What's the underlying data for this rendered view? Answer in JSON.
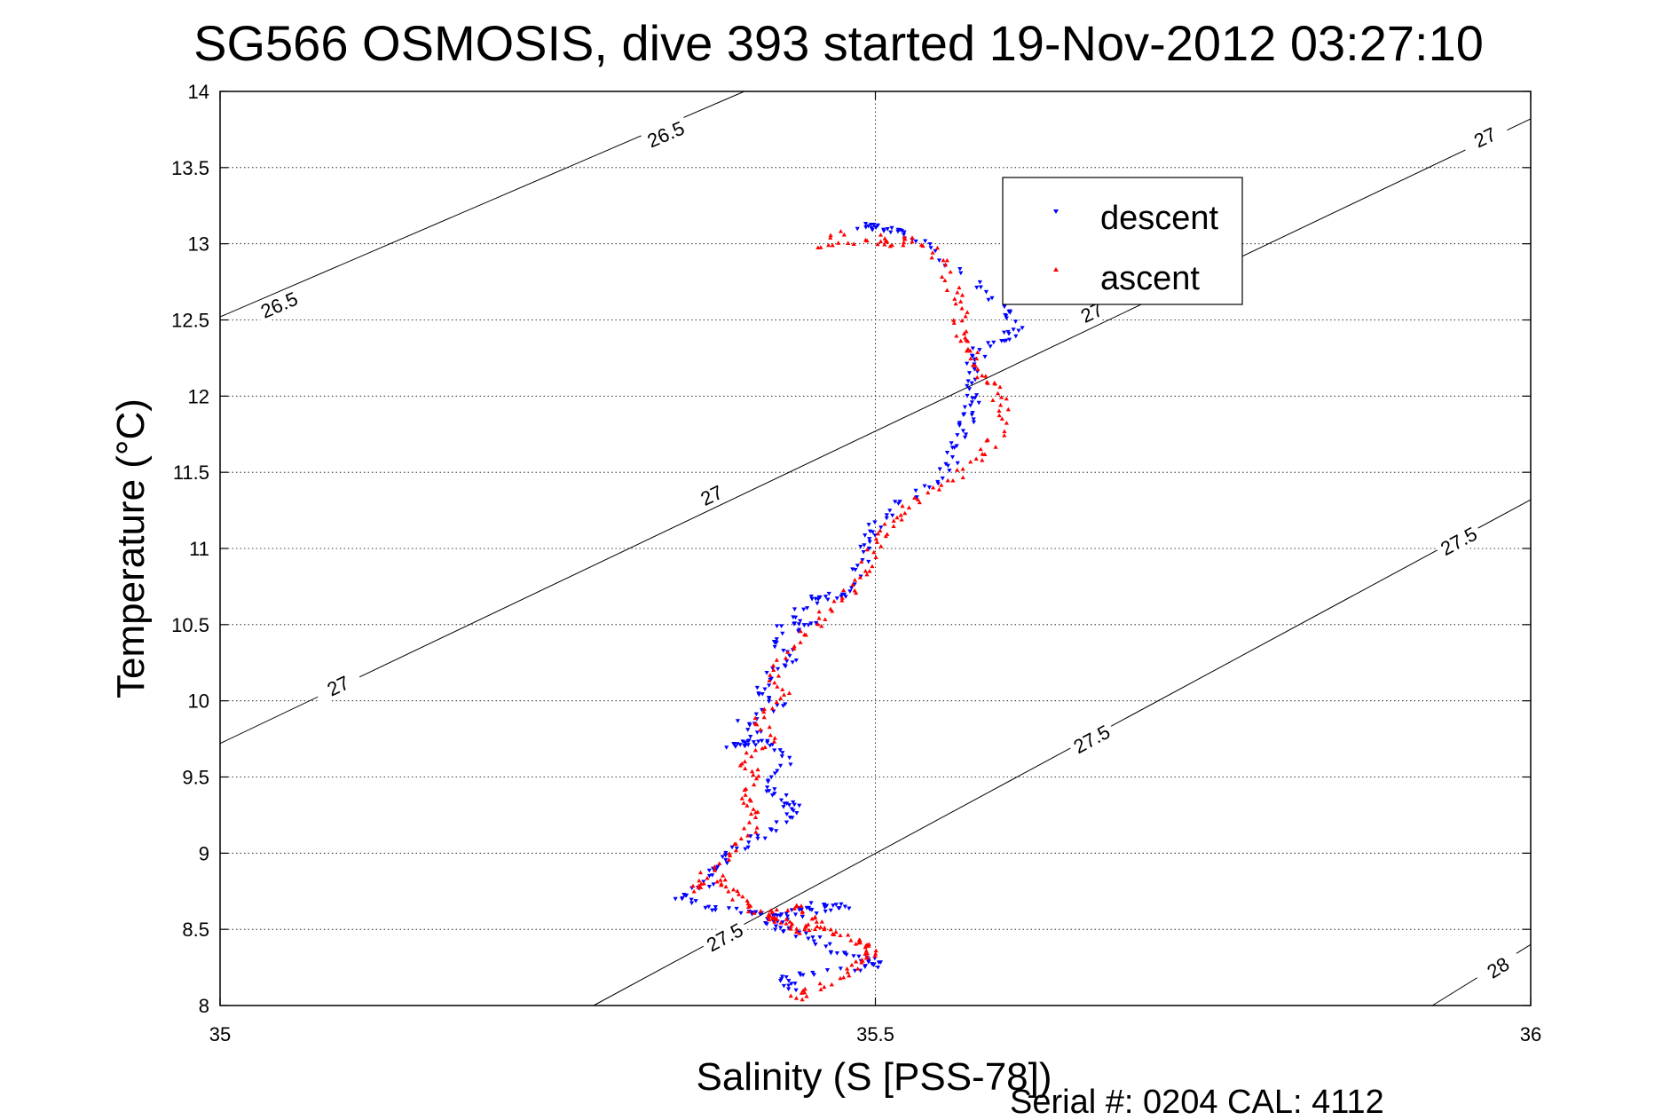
{
  "chart_data": {
    "type": "scatter",
    "title": "SG566 OSMOSIS, dive 393 started 19-Nov-2012 03:27:10",
    "xlabel": "Salinity (S [PSS-78])",
    "ylabel": "Temperature (°C)",
    "xlim": [
      35,
      36
    ],
    "ylim": [
      8,
      14
    ],
    "x_ticks": [
      {
        "value": 35,
        "label": "35"
      },
      {
        "value": 35.5,
        "label": "35.5"
      },
      {
        "value": 36,
        "label": "36"
      }
    ],
    "y_ticks": [
      {
        "value": 8,
        "label": "8"
      },
      {
        "value": 8.5,
        "label": "8.5"
      },
      {
        "value": 9,
        "label": "9"
      },
      {
        "value": 9.5,
        "label": "9.5"
      },
      {
        "value": 10,
        "label": "10"
      },
      {
        "value": 10.5,
        "label": "10.5"
      },
      {
        "value": 11,
        "label": "11"
      },
      {
        "value": 11.5,
        "label": "11.5"
      },
      {
        "value": 12,
        "label": "12"
      },
      {
        "value": 12.5,
        "label": "12.5"
      },
      {
        "value": 13,
        "label": "13"
      },
      {
        "value": 13.5,
        "label": "13.5"
      },
      {
        "value": 14,
        "label": "14"
      }
    ],
    "grid": true,
    "legend_position": "top-right",
    "density_contours": [
      {
        "label": "26.5",
        "points": [
          [
            35.0,
            12.52
          ],
          [
            35.4,
            14.0
          ]
        ],
        "labels_at": [
          [
            35.045,
            12.6
          ],
          [
            35.34,
            13.72
          ]
        ]
      },
      {
        "label": "27",
        "points": [
          [
            35.0,
            9.72
          ],
          [
            36.0,
            13.82
          ]
        ],
        "labels_at": [
          [
            35.09,
            10.1
          ],
          [
            35.375,
            11.35
          ],
          [
            35.665,
            12.55
          ],
          [
            35.965,
            13.7
          ]
        ]
      },
      {
        "label": "27.5",
        "points": [
          [
            35.285,
            8.0
          ],
          [
            36.0,
            11.32
          ]
        ],
        "labels_at": [
          [
            35.385,
            8.45
          ],
          [
            35.665,
            9.75
          ],
          [
            35.945,
            11.05
          ]
        ]
      },
      {
        "label": "28",
        "points": [
          [
            35.925,
            8.0
          ],
          [
            36.0,
            8.4
          ]
        ],
        "labels_at": [
          [
            35.975,
            8.25
          ]
        ]
      }
    ],
    "series": [
      {
        "name": "descent",
        "color": "#0000ff",
        "marker": "triangle-down",
        "x": [
          35.49,
          35.5,
          35.51,
          35.52,
          35.54,
          35.58,
          35.6,
          35.61,
          35.6,
          35.58,
          35.575,
          35.57,
          35.575,
          35.57,
          35.565,
          35.56,
          35.55,
          35.52,
          35.5,
          35.495,
          35.49,
          35.48,
          35.46,
          35.45,
          35.43,
          35.46,
          35.42,
          35.44,
          35.42,
          35.41,
          35.43,
          35.4,
          35.41,
          35.39,
          35.4,
          35.42,
          35.43,
          35.42,
          35.43,
          35.44,
          35.43,
          35.41,
          35.39,
          35.38,
          35.37,
          35.35,
          35.37,
          35.4,
          35.42,
          35.45,
          35.48,
          35.46,
          35.44,
          35.42,
          35.43,
          35.45,
          35.47,
          35.49,
          35.5,
          35.495,
          35.44,
          35.43,
          35.44
        ],
        "y": [
          13.1,
          13.12,
          13.1,
          13.08,
          12.97,
          12.72,
          12.55,
          12.45,
          12.38,
          12.3,
          12.2,
          12.05,
          11.95,
          11.85,
          11.75,
          11.6,
          11.45,
          11.3,
          11.15,
          11.05,
          10.9,
          10.7,
          10.68,
          10.65,
          10.5,
          10.52,
          10.4,
          10.3,
          10.2,
          10.05,
          9.98,
          9.85,
          9.75,
          9.7,
          9.72,
          9.72,
          9.6,
          9.45,
          9.35,
          9.3,
          9.2,
          9.1,
          9.0,
          8.9,
          8.8,
          8.7,
          8.65,
          8.62,
          8.6,
          8.62,
          8.64,
          8.68,
          8.6,
          8.55,
          8.5,
          8.45,
          8.35,
          8.3,
          8.28,
          8.25,
          8.2,
          8.15,
          8.1
        ]
      },
      {
        "name": "ascent",
        "color": "#ff0000",
        "marker": "triangle-up",
        "x": [
          35.44,
          35.45,
          35.48,
          35.49,
          35.5,
          35.49,
          35.48,
          35.46,
          35.43,
          35.42,
          35.44,
          35.46,
          35.44,
          35.42,
          35.4,
          35.39,
          35.38,
          35.36,
          35.38,
          35.4,
          35.41,
          35.4,
          35.41,
          35.4,
          35.42,
          35.41,
          35.43,
          35.42,
          35.44,
          35.46,
          35.48,
          35.49,
          35.5,
          35.51,
          35.52,
          35.55,
          35.57,
          35.59,
          35.6,
          35.59,
          35.58,
          35.575,
          35.565,
          35.565,
          35.56,
          35.55,
          35.53,
          35.51,
          35.5,
          35.46,
          35.48
        ],
        "y": [
          8.05,
          8.1,
          8.2,
          8.3,
          8.35,
          8.4,
          8.45,
          8.5,
          8.55,
          8.6,
          8.65,
          8.55,
          8.48,
          8.58,
          8.65,
          8.75,
          8.85,
          8.75,
          8.95,
          9.1,
          9.25,
          9.35,
          9.5,
          9.6,
          9.75,
          9.9,
          10.05,
          10.2,
          10.4,
          10.55,
          10.7,
          10.85,
          11.0,
          11.15,
          11.25,
          11.4,
          11.55,
          11.7,
          11.9,
          12.05,
          12.15,
          12.3,
          12.4,
          12.55,
          12.7,
          12.9,
          13.05,
          12.98,
          13.05,
          12.97,
          13.1
        ]
      }
    ],
    "footer_text": "Serial #: 0204  CAL: 4112"
  }
}
